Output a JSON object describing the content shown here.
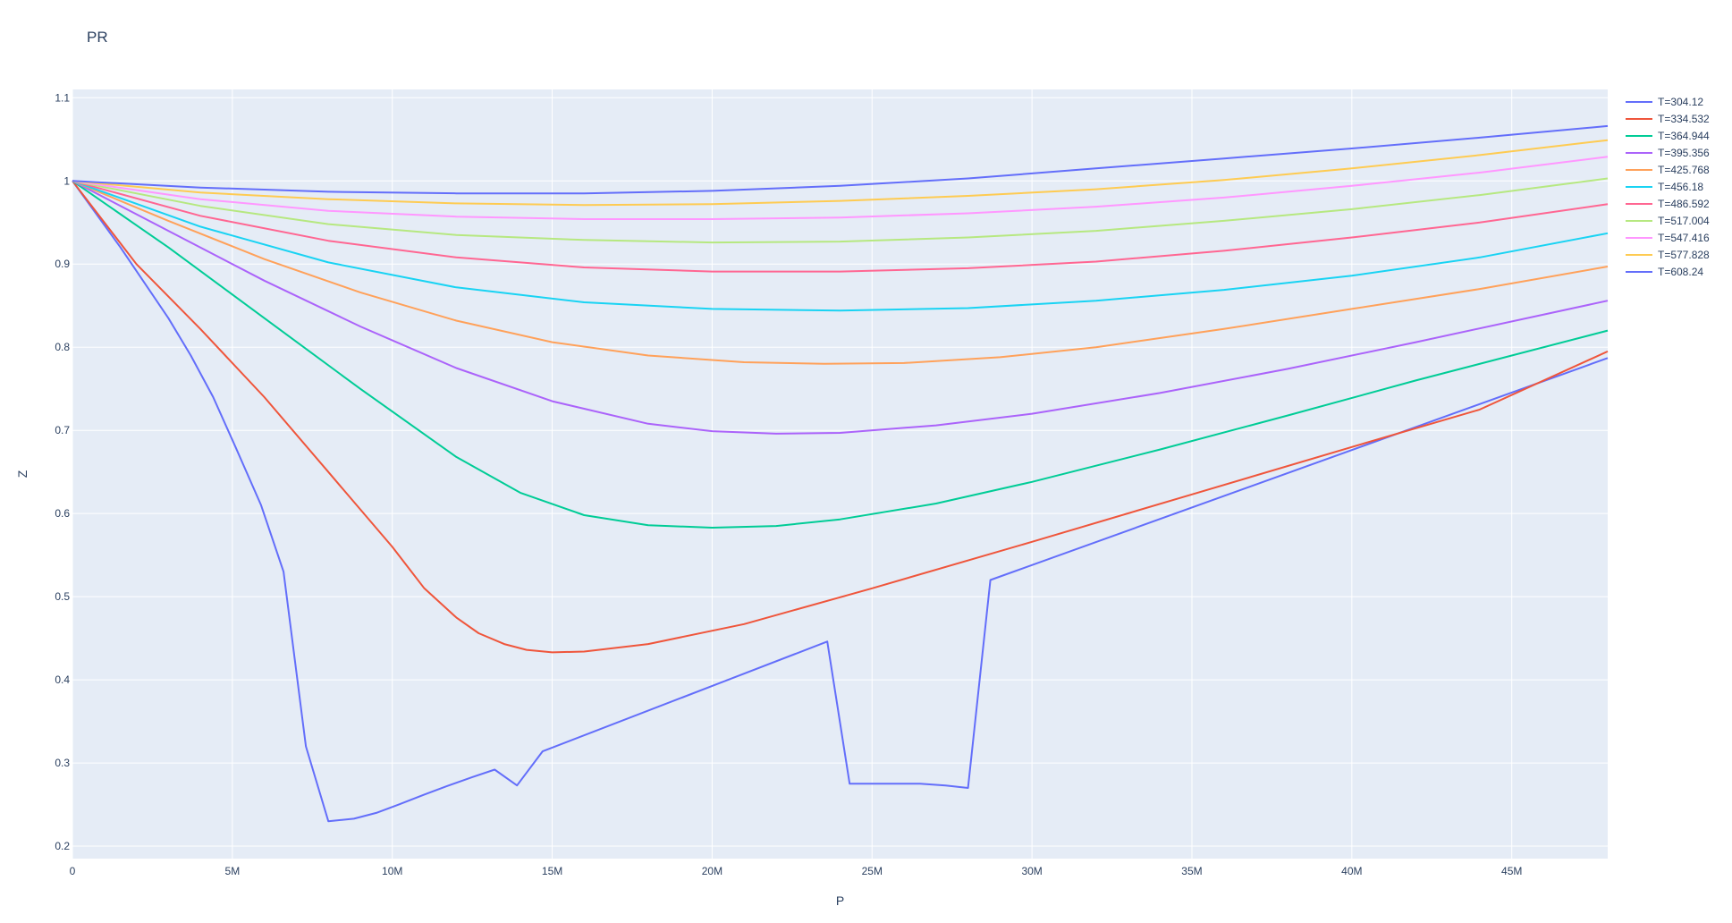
{
  "chart_data": {
    "type": "line",
    "title": "PR",
    "xlabel": "P",
    "ylabel": "Z",
    "xlim": [
      0,
      48000000
    ],
    "ylim": [
      0.185,
      1.11
    ],
    "x_ticks": [
      {
        "value": 0,
        "label": "0"
      },
      {
        "value": 5000000,
        "label": "5M"
      },
      {
        "value": 10000000,
        "label": "10M"
      },
      {
        "value": 15000000,
        "label": "15M"
      },
      {
        "value": 20000000,
        "label": "20M"
      },
      {
        "value": 25000000,
        "label": "25M"
      },
      {
        "value": 30000000,
        "label": "30M"
      },
      {
        "value": 35000000,
        "label": "35M"
      },
      {
        "value": 40000000,
        "label": "40M"
      },
      {
        "value": 45000000,
        "label": "45M"
      }
    ],
    "y_ticks": [
      {
        "value": 0.2,
        "label": "0.2"
      },
      {
        "value": 0.3,
        "label": "0.3"
      },
      {
        "value": 0.4,
        "label": "0.4"
      },
      {
        "value": 0.5,
        "label": "0.5"
      },
      {
        "value": 0.6,
        "label": "0.6"
      },
      {
        "value": 0.7,
        "label": "0.7"
      },
      {
        "value": 0.8,
        "label": "0.8"
      },
      {
        "value": 0.9,
        "label": "0.9"
      },
      {
        "value": 1.0,
        "label": "1"
      },
      {
        "value": 1.1,
        "label": "1.1"
      }
    ],
    "grid": true,
    "legend_position": "top-right",
    "colors": {
      "plot_bg": "#e5ecf6",
      "grid": "#ffffff",
      "text": "#2a3f5f"
    },
    "series": [
      {
        "name": "T=304.12",
        "color": "#636efa",
        "x": [
          0,
          1500000,
          3000000,
          3700000,
          4400000,
          5100000,
          5900000,
          6600000,
          7300000,
          8000000,
          8800000,
          9500000,
          10200000,
          11000000,
          11700000,
          12500000,
          13200000,
          13900000,
          14700000,
          23600000,
          24300000,
          25000000,
          26500000,
          27300000,
          28000000,
          28700000,
          48000000
        ],
        "y": [
          1.0,
          0.92,
          0.835,
          0.79,
          0.74,
          0.68,
          0.61,
          0.53,
          0.32,
          0.23,
          0.233,
          0.24,
          0.25,
          0.262,
          0.272,
          0.283,
          0.292,
          0.273,
          0.314,
          0.446,
          0.275,
          0.275,
          0.275,
          0.273,
          0.27,
          0.52,
          0.787
        ]
      },
      {
        "name": "T=334.532",
        "color": "#ef553b",
        "x": [
          0,
          2000000,
          4000000,
          6000000,
          8000000,
          10000000,
          11000000,
          12000000,
          12700000,
          13500000,
          14200000,
          15000000,
          16000000,
          18000000,
          21000000,
          25000000,
          30000000,
          35000000,
          40000000,
          44000000,
          48000000
        ],
        "y": [
          1.0,
          0.9,
          0.822,
          0.74,
          0.65,
          0.56,
          0.51,
          0.475,
          0.456,
          0.443,
          0.436,
          0.433,
          0.434,
          0.443,
          0.467,
          0.51,
          0.566,
          0.623,
          0.68,
          0.725,
          0.795
        ]
      },
      {
        "name": "T=364.944",
        "color": "#00cc96",
        "x": [
          0,
          3000000,
          6000000,
          9000000,
          12000000,
          14000000,
          16000000,
          18000000,
          20000000,
          22000000,
          24000000,
          27000000,
          30000000,
          34000000,
          38000000,
          42000000,
          48000000
        ],
        "y": [
          1.0,
          0.92,
          0.835,
          0.75,
          0.668,
          0.625,
          0.598,
          0.586,
          0.583,
          0.585,
          0.593,
          0.612,
          0.638,
          0.677,
          0.718,
          0.76,
          0.82
        ]
      },
      {
        "name": "T=395.356",
        "color": "#ab63fa",
        "x": [
          0,
          3000000,
          6000000,
          9000000,
          12000000,
          15000000,
          18000000,
          20000000,
          22000000,
          24000000,
          27000000,
          30000000,
          34000000,
          38000000,
          42000000,
          48000000
        ],
        "y": [
          1.0,
          0.94,
          0.88,
          0.825,
          0.775,
          0.735,
          0.708,
          0.699,
          0.696,
          0.697,
          0.706,
          0.72,
          0.745,
          0.774,
          0.806,
          0.856
        ]
      },
      {
        "name": "T=425.768",
        "color": "#ffa15a",
        "x": [
          0,
          3000000,
          6000000,
          9000000,
          12000000,
          15000000,
          18000000,
          21000000,
          23500000,
          26000000,
          29000000,
          32000000,
          36000000,
          40000000,
          44000000,
          48000000
        ],
        "y": [
          1.0,
          0.952,
          0.906,
          0.866,
          0.832,
          0.806,
          0.79,
          0.782,
          0.78,
          0.781,
          0.788,
          0.8,
          0.822,
          0.846,
          0.87,
          0.897
        ]
      },
      {
        "name": "T=456.18",
        "color": "#19d3f3",
        "x": [
          0,
          4000000,
          8000000,
          12000000,
          16000000,
          20000000,
          24000000,
          28000000,
          32000000,
          36000000,
          40000000,
          44000000,
          48000000
        ],
        "y": [
          1.0,
          0.945,
          0.902,
          0.872,
          0.854,
          0.846,
          0.844,
          0.847,
          0.856,
          0.869,
          0.886,
          0.908,
          0.937
        ]
      },
      {
        "name": "T=486.592",
        "color": "#ff6692",
        "x": [
          0,
          4000000,
          8000000,
          12000000,
          16000000,
          20000000,
          24000000,
          28000000,
          32000000,
          36000000,
          40000000,
          44000000,
          48000000
        ],
        "y": [
          1.0,
          0.958,
          0.928,
          0.908,
          0.896,
          0.891,
          0.891,
          0.895,
          0.903,
          0.916,
          0.932,
          0.95,
          0.972
        ]
      },
      {
        "name": "T=517.004",
        "color": "#b6e880",
        "x": [
          0,
          4000000,
          8000000,
          12000000,
          16000000,
          20000000,
          24000000,
          28000000,
          32000000,
          36000000,
          40000000,
          44000000,
          48000000
        ],
        "y": [
          1.0,
          0.97,
          0.948,
          0.935,
          0.929,
          0.926,
          0.927,
          0.932,
          0.94,
          0.952,
          0.966,
          0.983,
          1.003
        ]
      },
      {
        "name": "T=547.416",
        "color": "#ff97ff",
        "x": [
          0,
          4000000,
          8000000,
          12000000,
          16000000,
          20000000,
          24000000,
          28000000,
          32000000,
          36000000,
          40000000,
          44000000,
          48000000
        ],
        "y": [
          1.0,
          0.978,
          0.964,
          0.957,
          0.954,
          0.954,
          0.956,
          0.961,
          0.969,
          0.98,
          0.994,
          1.01,
          1.029
        ]
      },
      {
        "name": "T=577.828",
        "color": "#fecb52",
        "x": [
          0,
          4000000,
          8000000,
          12000000,
          16000000,
          20000000,
          24000000,
          28000000,
          32000000,
          36000000,
          40000000,
          44000000,
          48000000
        ],
        "y": [
          1.0,
          0.986,
          0.978,
          0.973,
          0.971,
          0.972,
          0.976,
          0.982,
          0.99,
          1.001,
          1.015,
          1.031,
          1.049
        ]
      },
      {
        "name": "T=608.24",
        "color": "#636efa",
        "x": [
          0,
          4000000,
          8000000,
          12000000,
          16000000,
          20000000,
          24000000,
          28000000,
          32000000,
          36000000,
          40000000,
          44000000,
          48000000
        ],
        "y": [
          1.0,
          0.992,
          0.987,
          0.985,
          0.985,
          0.988,
          0.994,
          1.003,
          1.015,
          1.027,
          1.039,
          1.052,
          1.066
        ]
      }
    ]
  }
}
